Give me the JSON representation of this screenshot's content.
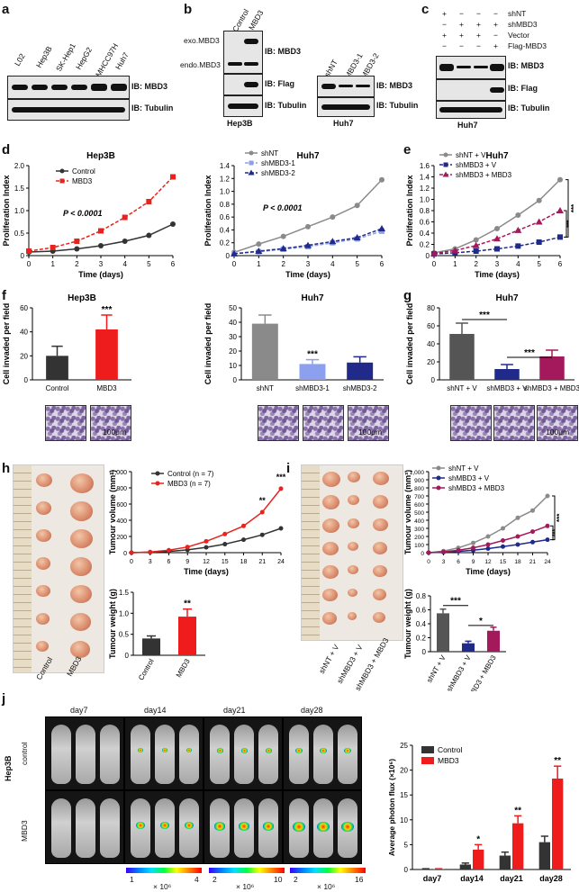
{
  "panels": {
    "a": {
      "label": "a",
      "lanes": [
        "L02",
        "Hep3B",
        "SK-Hep1",
        "HepG2",
        "MHCC97H",
        "Huh7"
      ],
      "ib1": "IB: MBD3",
      "ib2": "IB: Tubulin"
    },
    "b": {
      "label": "b",
      "lanes_left": [
        "Control",
        "MBD3"
      ],
      "exo": "exo.MBD3",
      "endo": "endo.MBD3",
      "ib_mbd3": "IB: MBD3",
      "ib_flag": "IB: Flag",
      "ib_tub": "IB: Tubulin",
      "cell_left": "Hep3B",
      "lanes_right": [
        "shNT",
        "shMBD3-1",
        "shMBD3-2"
      ],
      "ib_mbd3_r": "IB: MBD3",
      "ib_tub_r": "IB: Tubulin",
      "cell_right": "Huh7"
    },
    "c": {
      "label": "c",
      "rows": [
        {
          "signs": [
            "+",
            "−",
            "−",
            "−"
          ],
          "name": "shNT"
        },
        {
          "signs": [
            "−",
            "+",
            "+",
            "+"
          ],
          "name": "shMBD3"
        },
        {
          "signs": [
            "+",
            "+",
            "+",
            "−"
          ],
          "name": "Vector"
        },
        {
          "signs": [
            "−",
            "−",
            "−",
            "+"
          ],
          "name": "Flag-MBD3"
        }
      ],
      "ib1": "IB: MBD3",
      "ib2": "IB: Flag",
      "ib3": "IB: Tubulin",
      "cell": "Huh7"
    },
    "d": {
      "label": "d"
    },
    "e": {
      "label": "e"
    },
    "f": {
      "label": "f",
      "scale": "100μm",
      "scale2": "100μm"
    },
    "g": {
      "label": "g",
      "scale": "100μm"
    },
    "h": {
      "label": "h",
      "img_labels": [
        "Control",
        "MBD3"
      ]
    },
    "i": {
      "label": "i",
      "img_labels": [
        "shNT + V",
        "shMBD3 + V",
        "shMBD3 + MBD3"
      ]
    },
    "j": {
      "label": "j",
      "days": [
        "day7",
        "day14",
        "day21",
        "day28"
      ],
      "row_labels": [
        "control",
        "MBD3"
      ],
      "cell": "Hep3B",
      "scales": [
        {
          "min": "1",
          "max": "4",
          "unit": "× 10⁶"
        },
        {
          "min": "2",
          "max": "10",
          "unit": "× 10⁶"
        },
        {
          "min": "2",
          "max": "16",
          "unit": "× 10⁶"
        }
      ]
    }
  },
  "chart_data": [
    {
      "id": "d-hep3b",
      "type": "line",
      "title": "Hep3B",
      "xlabel": "Time (days)",
      "ylabel": "Proliferation Index",
      "x": [
        0,
        1,
        2,
        3,
        4,
        5,
        6
      ],
      "xlim": [
        0,
        6
      ],
      "ylim": [
        0,
        2.0
      ],
      "xticks": [
        "0",
        "1",
        "2",
        "3",
        "4",
        "5",
        "6"
      ],
      "yticks": [
        "0",
        "0.5",
        "1.0",
        "1.5",
        "2.0"
      ],
      "annotation": "P < 0.0001",
      "series": [
        {
          "name": "Control",
          "values": [
            0.08,
            0.1,
            0.15,
            0.22,
            0.32,
            0.45,
            0.7
          ],
          "color": "#333333",
          "dash": false,
          "marker": "circle"
        },
        {
          "name": "MBD3",
          "values": [
            0.1,
            0.18,
            0.32,
            0.55,
            0.85,
            1.2,
            1.75
          ],
          "color": "#e8231e",
          "dash": true,
          "marker": "square"
        }
      ]
    },
    {
      "id": "d-huh7",
      "type": "line",
      "title": "Huh7",
      "xlabel": "Time (days)",
      "ylabel": "Proliferation Index",
      "x": [
        0,
        1,
        2,
        3,
        4,
        5,
        6
      ],
      "xlim": [
        0,
        6
      ],
      "ylim": [
        0,
        1.4
      ],
      "xticks": [
        "0",
        "1",
        "2",
        "3",
        "4",
        "5",
        "6"
      ],
      "yticks": [
        "0",
        "0.2",
        "0.4",
        "0.6",
        "0.8",
        "1.0",
        "1.2",
        "1.4"
      ],
      "annotation": "P < 0.0001",
      "series": [
        {
          "name": "shNT",
          "values": [
            0.05,
            0.18,
            0.3,
            0.45,
            0.6,
            0.78,
            1.18
          ],
          "color": "#8a8a8a",
          "dash": false,
          "marker": "circle"
        },
        {
          "name": "shMBD3-1",
          "values": [
            0.03,
            0.06,
            0.1,
            0.14,
            0.2,
            0.26,
            0.38
          ],
          "color": "#8da0e6",
          "dash": true,
          "marker": "square"
        },
        {
          "name": "shMBD3-2",
          "values": [
            0.03,
            0.07,
            0.11,
            0.16,
            0.22,
            0.28,
            0.42
          ],
          "color": "#1f2a8a",
          "dash": true,
          "marker": "triangle"
        }
      ]
    },
    {
      "id": "e-huh7",
      "type": "line",
      "title": "Huh7",
      "xlabel": "Time (days)",
      "ylabel": "Proliferation Index",
      "x": [
        0,
        1,
        2,
        3,
        4,
        5,
        6
      ],
      "xlim": [
        0,
        6
      ],
      "ylim": [
        0,
        1.6
      ],
      "xticks": [
        "0",
        "1",
        "2",
        "3",
        "4",
        "5",
        "6"
      ],
      "yticks": [
        "0",
        "0.2",
        "0.4",
        "0.6",
        "0.8",
        "1.0",
        "1.2",
        "1.4",
        "1.6"
      ],
      "annotation": "***",
      "series": [
        {
          "name": "shNT + V",
          "values": [
            0.05,
            0.12,
            0.28,
            0.48,
            0.72,
            0.98,
            1.35
          ],
          "color": "#8a8a8a",
          "dash": false,
          "marker": "circle"
        },
        {
          "name": "shMBD3 + V",
          "values": [
            0.03,
            0.05,
            0.08,
            0.12,
            0.17,
            0.24,
            0.33
          ],
          "color": "#1f2a8a",
          "dash": true,
          "marker": "square"
        },
        {
          "name": "shMBD3 + MBD3",
          "values": [
            0.04,
            0.09,
            0.18,
            0.3,
            0.45,
            0.6,
            0.8
          ],
          "color": "#a3195b",
          "dash": true,
          "marker": "triangle"
        }
      ]
    },
    {
      "id": "f-hep3b",
      "type": "bar",
      "title": "Hep3B",
      "ylabel": "Cell invaded per field",
      "ylim": [
        0,
        60
      ],
      "yticks": [
        "0",
        "20",
        "40",
        "60"
      ],
      "categories": [
        "Control",
        "MBD3"
      ],
      "values": [
        20,
        42
      ],
      "errors": [
        8,
        12
      ],
      "colors": [
        "#333333",
        "#ee1c1c"
      ],
      "sig": [
        "",
        "***"
      ]
    },
    {
      "id": "f-huh7",
      "type": "bar",
      "title": "Huh7",
      "ylabel": "Cell invaded per field",
      "ylim": [
        0,
        50
      ],
      "yticks": [
        "0",
        "10",
        "20",
        "30",
        "40",
        "50"
      ],
      "categories": [
        "shNT",
        "shMBD3-1",
        "shMBD3-2"
      ],
      "values": [
        39,
        11,
        12
      ],
      "errors": [
        6,
        3,
        4
      ],
      "colors": [
        "#8a8a8a",
        "#8da0f0",
        "#1f2a8a"
      ],
      "sig": [
        "",
        "***",
        ""
      ]
    },
    {
      "id": "g-huh7",
      "type": "bar",
      "title": "Huh7",
      "ylabel": "Cell invaded per field",
      "ylim": [
        0,
        80
      ],
      "yticks": [
        "0",
        "20",
        "40",
        "60",
        "80"
      ],
      "categories": [
        "shNT + V",
        "shMBD3 + V",
        "shMBD3 + MBD3"
      ],
      "values": [
        51,
        12,
        26
      ],
      "errors": [
        12,
        5,
        7
      ],
      "colors": [
        "#555555",
        "#1f2a8a",
        "#a3195b"
      ],
      "sig_brackets": [
        "***",
        "***"
      ]
    },
    {
      "id": "h-vol",
      "type": "line",
      "xlabel": "Time (days)",
      "ylabel": "Tumour volume (mm³)",
      "x": [
        0,
        3,
        6,
        9,
        12,
        15,
        18,
        21,
        24
      ],
      "xlim": [
        0,
        24
      ],
      "ylim": [
        0,
        1000
      ],
      "xticks": [
        "0",
        "3",
        "6",
        "9",
        "12",
        "15",
        "18",
        "21",
        "24"
      ],
      "yticks": [
        "0",
        "200",
        "400",
        "600",
        "800",
        "1,000"
      ],
      "sig_points": [
        "",
        "",
        "",
        "",
        "",
        "",
        "",
        "**",
        "***"
      ],
      "series": [
        {
          "name": "Control (n = 7)",
          "values": [
            0,
            5,
            15,
            35,
            65,
            105,
            160,
            220,
            300
          ],
          "color": "#333333",
          "dash": false,
          "marker": "circle"
        },
        {
          "name": "MBD3 (n = 7)",
          "values": [
            0,
            8,
            30,
            70,
            140,
            230,
            330,
            500,
            790
          ],
          "color": "#e8231e",
          "dash": false,
          "marker": "circle"
        }
      ]
    },
    {
      "id": "h-wt",
      "type": "bar",
      "ylabel": "Tumour weight (g)",
      "ylim": [
        0,
        1.5
      ],
      "yticks": [
        "0",
        "0.5",
        "1.0",
        "1.5"
      ],
      "categories": [
        "Control",
        "MBD3"
      ],
      "values": [
        0.4,
        0.92
      ],
      "errors": [
        0.06,
        0.18
      ],
      "colors": [
        "#333333",
        "#ee1c1c"
      ],
      "sig": [
        "",
        "**"
      ]
    },
    {
      "id": "i-vol",
      "type": "line",
      "xlabel": "Time (days)",
      "ylabel": "Tumour volume (mm³)",
      "x": [
        0,
        3,
        6,
        9,
        12,
        15,
        18,
        21,
        24
      ],
      "xlim": [
        0,
        24
      ],
      "ylim": [
        0,
        1000
      ],
      "xticks": [
        "0",
        "3",
        "6",
        "9",
        "12",
        "15",
        "18",
        "21",
        "24"
      ],
      "yticks": [
        "0",
        "100",
        "200",
        "300",
        "400",
        "500",
        "600",
        "700",
        "800",
        "900",
        "1,000"
      ],
      "annotation": "***",
      "series": [
        {
          "name": "shNT + V",
          "values": [
            0,
            20,
            60,
            120,
            200,
            300,
            430,
            520,
            700
          ],
          "color": "#8a8a8a",
          "dash": false,
          "marker": "circle"
        },
        {
          "name": "shMBD3 + V",
          "values": [
            0,
            5,
            15,
            30,
            50,
            75,
            100,
            130,
            160
          ],
          "color": "#1f2a8a",
          "dash": false,
          "marker": "circle"
        },
        {
          "name": "shMBD3 + MBD3",
          "values": [
            0,
            10,
            30,
            60,
            100,
            150,
            200,
            260,
            330
          ],
          "color": "#a3195b",
          "dash": false,
          "marker": "circle"
        }
      ]
    },
    {
      "id": "i-wt",
      "type": "bar",
      "ylabel": "Tumour weight (g)",
      "ylim": [
        0,
        0.8
      ],
      "yticks": [
        "0",
        "0.2",
        "0.4",
        "0.6",
        "0.8"
      ],
      "categories": [
        "shNT + V",
        "shMBD3 + V",
        "shMBD3 + MBD3"
      ],
      "values": [
        0.55,
        0.12,
        0.3
      ],
      "errors": [
        0.06,
        0.03,
        0.05
      ],
      "colors": [
        "#555555",
        "#1f2a8a",
        "#a3195b"
      ],
      "sig_brackets": [
        "***",
        "*"
      ]
    },
    {
      "id": "j-flux",
      "type": "bar",
      "ylabel": "Average photon flux (×10⁶)",
      "ylim": [
        0,
        25
      ],
      "yticks": [
        "0",
        "5",
        "10",
        "15",
        "20",
        "25"
      ],
      "categories": [
        "day7",
        "day14",
        "day21",
        "day28"
      ],
      "series": [
        {
          "name": "Control",
          "values": [
            0.1,
            1.0,
            2.8,
            5.5
          ],
          "errors": [
            0.05,
            0.3,
            0.7,
            1.2
          ],
          "color": "#333333"
        },
        {
          "name": "MBD3",
          "values": [
            0.1,
            4.0,
            9.3,
            18.3
          ],
          "errors": [
            0.05,
            1.0,
            1.5,
            2.5
          ],
          "color": "#ee1c1c"
        }
      ],
      "sig": [
        "",
        "*",
        "**",
        "**"
      ]
    }
  ]
}
